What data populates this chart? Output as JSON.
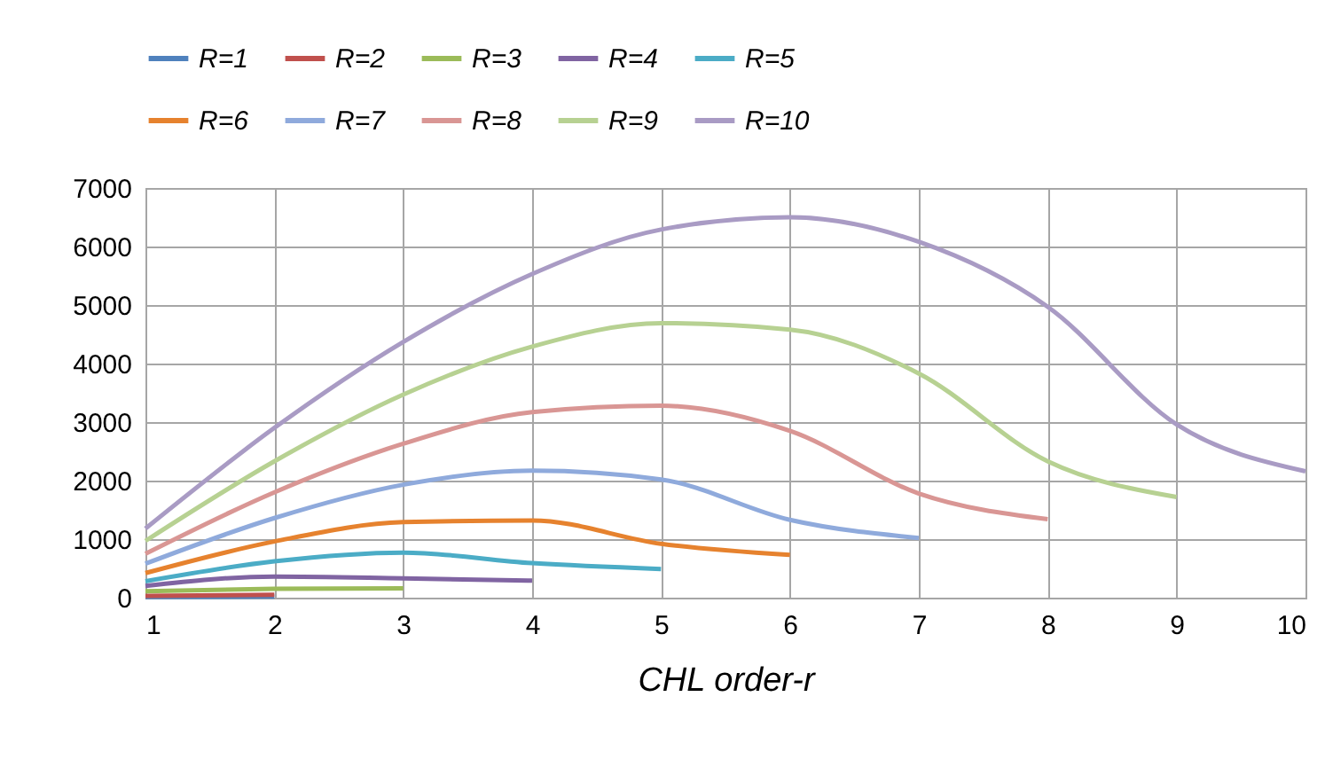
{
  "chart_data": {
    "type": "line",
    "xlabel": "CHL order-r",
    "xlim": [
      1,
      10
    ],
    "xticks": [
      1,
      2,
      3,
      4,
      5,
      6,
      7,
      8,
      9,
      10
    ],
    "ylim": [
      0,
      7000
    ],
    "yticks": [
      0,
      1000,
      2000,
      3000,
      4000,
      5000,
      6000,
      7000
    ],
    "grid": true,
    "legend": "top",
    "marker": "none",
    "line_style": "solid",
    "series": [
      {
        "name": "R=1",
        "color": "#4f81bd",
        "x": [
          1,
          2
        ],
        "values": [
          10,
          20
        ]
      },
      {
        "name": "R=2",
        "color": "#c0504d",
        "x": [
          1,
          2
        ],
        "values": [
          30,
          50
        ]
      },
      {
        "name": "R=3",
        "color": "#9bbb59",
        "x": [
          1,
          2,
          3
        ],
        "values": [
          110,
          150,
          160
        ]
      },
      {
        "name": "R=4",
        "color": "#8064a2",
        "x": [
          1,
          2,
          3,
          4
        ],
        "values": [
          200,
          360,
          330,
          290
        ]
      },
      {
        "name": "R=5",
        "color": "#4bacc6",
        "x": [
          1,
          2,
          3,
          4,
          5
        ],
        "values": [
          280,
          620,
          770,
          590,
          490
        ]
      },
      {
        "name": "R=6",
        "color": "#e6822e",
        "x": [
          1,
          2,
          3,
          4,
          5,
          6
        ],
        "values": [
          420,
          960,
          1290,
          1320,
          920,
          730
        ]
      },
      {
        "name": "R=7",
        "color": "#8faadc",
        "x": [
          1,
          2,
          3,
          4,
          5,
          6,
          7
        ],
        "values": [
          580,
          1360,
          1930,
          2170,
          2020,
          1330,
          1020
        ]
      },
      {
        "name": "R=8",
        "color": "#d99694",
        "x": [
          1,
          2,
          3,
          4,
          5,
          6,
          7,
          8
        ],
        "values": [
          750,
          1800,
          2630,
          3170,
          3280,
          2850,
          1780,
          1340
        ]
      },
      {
        "name": "R=9",
        "color": "#b7d192",
        "x": [
          1,
          2,
          3,
          4,
          5,
          6,
          7,
          8,
          9
        ],
        "values": [
          970,
          2330,
          3470,
          4290,
          4690,
          4580,
          3830,
          2330,
          1720
        ]
      },
      {
        "name": "R=10",
        "color": "#a99bc4",
        "x": [
          1,
          2,
          3,
          4,
          5,
          6,
          7,
          8,
          9,
          10
        ],
        "values": [
          1180,
          2900,
          4370,
          5530,
          6290,
          6500,
          6080,
          4970,
          2960,
          2160
        ]
      }
    ]
  }
}
